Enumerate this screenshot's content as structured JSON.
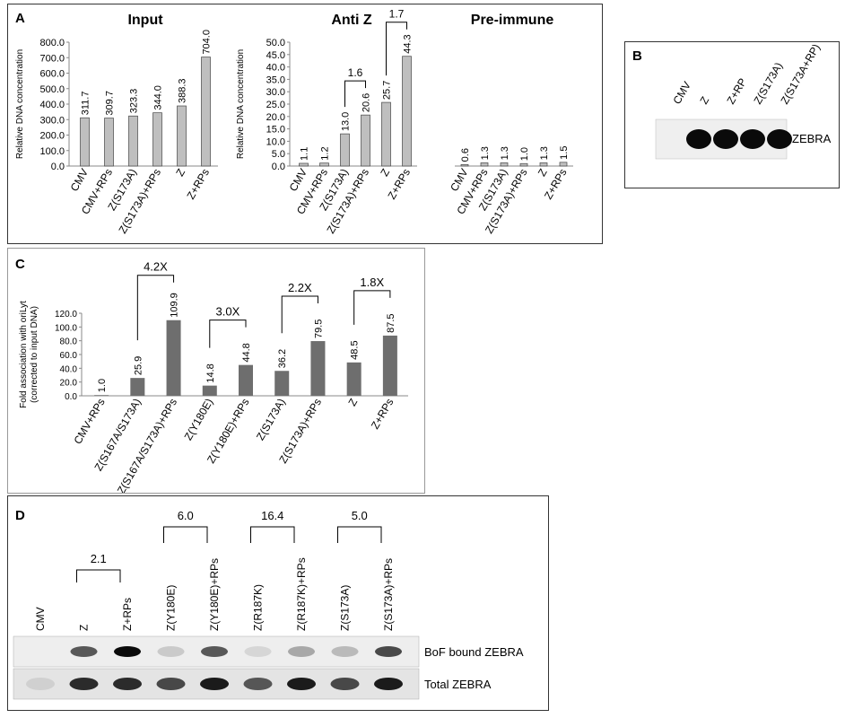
{
  "panels": {
    "A": {
      "letter": "A"
    },
    "B": {
      "letter": "B"
    },
    "C": {
      "letter": "C"
    },
    "D": {
      "letter": "D"
    }
  },
  "chart_data": [
    {
      "id": "A-input",
      "type": "bar",
      "title": "Input",
      "ylabel": "Relative DNA concentration",
      "categories": [
        "CMV",
        "CMV+RPs",
        "Z(S173A)",
        "Z(S173A)+RPs",
        "Z",
        "Z+RPs"
      ],
      "values": [
        311.7,
        309.7,
        323.3,
        344.0,
        388.3,
        704.0
      ],
      "value_labels": [
        "311.7",
        "309.7",
        "323.3",
        "344.0",
        "388.3",
        "704.0"
      ],
      "ylim": [
        0,
        800
      ],
      "yticks": [
        "0.0",
        "100.0",
        "200.0",
        "300.0",
        "400.0",
        "500.0",
        "600.0",
        "700.0",
        "800.0"
      ],
      "bar_color": "#bfbfbf"
    },
    {
      "id": "A-antiz",
      "type": "bar",
      "title": "Anti Z",
      "ylabel": "Relative DNA concentration",
      "categories": [
        "CMV",
        "CMV+RPs",
        "Z(S173A)",
        "Z(S173A)+RPs",
        "Z",
        "Z+RPs"
      ],
      "values": [
        1.1,
        1.2,
        13.0,
        20.6,
        25.7,
        44.3
      ],
      "value_labels": [
        "1.1",
        "1.2",
        "13.0",
        "20.6",
        "25.7",
        "44.3"
      ],
      "ylim": [
        0,
        50
      ],
      "yticks": [
        "0.0",
        "5.0",
        "10.0",
        "15.0",
        "20.0",
        "25.0",
        "30.0",
        "35.0",
        "40.0",
        "45.0",
        "50.0"
      ],
      "brackets": [
        {
          "from": 2,
          "to": 3,
          "label": "1.6"
        },
        {
          "from": 4,
          "to": 5,
          "label": "1.7"
        }
      ],
      "bar_color": "#bfbfbf"
    },
    {
      "id": "A-preimmune",
      "type": "bar",
      "title": "Pre-immune",
      "categories": [
        "CMV",
        "CMV+RPs",
        "Z(S173A)",
        "Z(S173A)+RPs",
        "Z",
        "Z+RPs"
      ],
      "values": [
        0.6,
        1.3,
        1.3,
        1.0,
        1.3,
        1.5
      ],
      "value_labels": [
        "0.6",
        "1.3",
        "1.3",
        "1.0",
        "1.3",
        "1.5"
      ],
      "ylim": [
        0,
        50
      ],
      "bar_color": "#bfbfbf"
    },
    {
      "id": "C",
      "type": "bar",
      "ylabel_lines": [
        "Fold association with oriLyt",
        "(corrected to input DNA)"
      ],
      "categories": [
        "CMV+RPs",
        "Z(S167A/S173A)",
        "Z(S167A/S173A)+RPs",
        "Z(Y180E)",
        "Z(Y180E)+RPs",
        "Z(S173A)",
        "Z(S173A)+RPs",
        "Z",
        "Z+RPs"
      ],
      "values": [
        1.0,
        25.9,
        109.9,
        14.8,
        44.8,
        36.2,
        79.5,
        48.5,
        87.5
      ],
      "value_labels": [
        "1.0",
        "25.9",
        "109.9",
        "14.8",
        "44.8",
        "36.2",
        "79.5",
        "48.5",
        "87.5"
      ],
      "ylim": [
        0,
        120
      ],
      "yticks": [
        "0.0",
        "20.0",
        "40.0",
        "60.0",
        "80.0",
        "100.0",
        "120.0"
      ],
      "brackets": [
        {
          "from": 1,
          "to": 2,
          "label": "4.2X"
        },
        {
          "from": 3,
          "to": 4,
          "label": "3.0X"
        },
        {
          "from": 5,
          "to": 6,
          "label": "2.2X"
        },
        {
          "from": 7,
          "to": 8,
          "label": "1.8X"
        }
      ],
      "bar_color": "#6e6e6e"
    }
  ],
  "blotB": {
    "lanes": [
      "CMV",
      "Z",
      "Z+RP",
      "Z(S173A)",
      "Z(S173A+RP)"
    ],
    "band_label": "ZEBRA",
    "intensities": [
      0,
      1,
      1,
      1,
      1
    ]
  },
  "blotD": {
    "lanes": [
      "CMV",
      "Z",
      "Z+RPs",
      "Z(Y180E)",
      "Z(Y180E)+RPs",
      "Z(R187K)",
      "Z(R187K)+RPs",
      "Z(S173A)",
      "Z(S173A)+RPs"
    ],
    "brackets": [
      {
        "from": 1,
        "to": 2,
        "label": "2.1"
      },
      {
        "from": 3,
        "to": 4,
        "label": "6.0"
      },
      {
        "from": 5,
        "to": 6,
        "label": "16.4"
      },
      {
        "from": 7,
        "to": 8,
        "label": "5.0"
      }
    ],
    "row1_label": "BoF bound ZEBRA",
    "row2_label": "Total ZEBRA",
    "row1_intensities": [
      0,
      0.75,
      1,
      0.2,
      0.75,
      0.1,
      0.4,
      0.3,
      0.8
    ],
    "row2_intensities": [
      0.1,
      0.9,
      0.9,
      0.8,
      0.95,
      0.75,
      0.95,
      0.8,
      0.95
    ]
  }
}
